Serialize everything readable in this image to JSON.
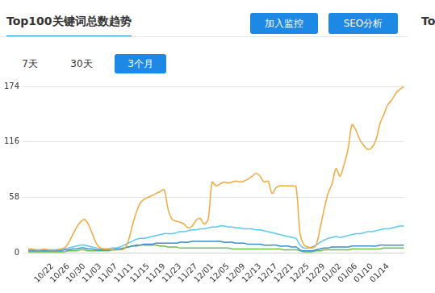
{
  "header": {
    "title": "Top100关键词总数趋势",
    "buttons": [
      "加入监控",
      "SEO分析"
    ],
    "next_panel_title": "To"
  },
  "tabs": {
    "items": [
      "7天",
      "30天",
      "3个月"
    ],
    "active": "3个月"
  },
  "chart_data": {
    "type": "line",
    "categories": [
      null,
      null,
      null,
      null,
      null,
      null,
      "10/22",
      null,
      null,
      null,
      "10/26",
      null,
      null,
      null,
      "10/30",
      null,
      null,
      null,
      "11/03",
      null,
      null,
      null,
      "11/07",
      null,
      null,
      null,
      "11/11",
      null,
      null,
      null,
      "11/15",
      null,
      null,
      null,
      "11/19",
      null,
      null,
      null,
      "11/23",
      null,
      null,
      null,
      "11/27",
      null,
      null,
      null,
      "12/01",
      null,
      null,
      null,
      "12/05",
      null,
      null,
      null,
      "12/09",
      null,
      null,
      null,
      "12/13",
      null,
      null,
      null,
      "12/17",
      null,
      null,
      null,
      "12/21",
      null,
      null,
      null,
      "12/25",
      null,
      null,
      null,
      "12/29",
      null,
      null,
      null,
      "01/02",
      null,
      null,
      null,
      "01/06",
      null,
      null,
      null,
      "01/10",
      null,
      null,
      null,
      "01/14",
      null,
      null,
      null,
      null
    ],
    "series": [
      {
        "color": "#f5a73b",
        "values": [
          4,
          4,
          3,
          3,
          4,
          3,
          3,
          3,
          4,
          5,
          10,
          18,
          26,
          32,
          35,
          30,
          20,
          10,
          5,
          4,
          4,
          3,
          3,
          3,
          4,
          12,
          28,
          42,
          52,
          56,
          58,
          60,
          62,
          64,
          66,
          45,
          35,
          33,
          32,
          30,
          26,
          28,
          34,
          36,
          30,
          35,
          74,
          70,
          72,
          74,
          73,
          74,
          75,
          74,
          75,
          77,
          80,
          83,
          80,
          74,
          75,
          62,
          68,
          70,
          70,
          70,
          70,
          69,
          20,
          8,
          6,
          5,
          8,
          25,
          45,
          62,
          72,
          88,
          80,
          92,
          108,
          134,
          128,
          118,
          112,
          108,
          110,
          118,
          135,
          145,
          155,
          160,
          167,
          171,
          174
        ]
      },
      {
        "color": "#5bc8f0",
        "values": [
          3,
          3,
          3,
          3,
          3,
          3,
          3,
          3,
          3,
          4,
          5,
          6,
          7,
          8,
          8,
          7,
          6,
          5,
          4,
          4,
          4,
          5,
          5,
          6,
          8,
          10,
          12,
          14,
          15,
          15,
          16,
          17,
          18,
          19,
          20,
          20,
          20,
          21,
          22,
          22,
          23,
          24,
          24,
          25,
          25,
          26,
          27,
          27,
          28,
          28,
          27,
          27,
          26,
          26,
          25,
          25,
          25,
          24,
          24,
          23,
          22,
          21,
          20,
          19,
          18,
          17,
          16,
          15,
          8,
          5,
          5,
          6,
          8,
          11,
          13,
          15,
          16,
          17,
          16,
          17,
          18,
          19,
          20,
          20,
          21,
          22,
          22,
          23,
          24,
          25,
          25,
          26,
          27,
          28,
          28
        ]
      },
      {
        "color": "#3a8fd0",
        "values": [
          2,
          2,
          2,
          2,
          2,
          2,
          2,
          2,
          2,
          3,
          3,
          4,
          4,
          5,
          5,
          4,
          4,
          3,
          3,
          3,
          3,
          3,
          4,
          4,
          5,
          6,
          7,
          8,
          8,
          9,
          9,
          9,
          10,
          10,
          10,
          10,
          10,
          10,
          11,
          11,
          11,
          12,
          12,
          12,
          12,
          12,
          12,
          12,
          12,
          11,
          11,
          11,
          10,
          10,
          10,
          9,
          9,
          9,
          9,
          8,
          8,
          8,
          8,
          7,
          7,
          7,
          6,
          6,
          3,
          2,
          2,
          2,
          3,
          4,
          5,
          5,
          6,
          6,
          6,
          6,
          6,
          7,
          7,
          7,
          7,
          7,
          7,
          7,
          8,
          8,
          8,
          8,
          8,
          8,
          8
        ]
      },
      {
        "color": "#6cc04a",
        "values": [
          1,
          1,
          1,
          1,
          1,
          1,
          1,
          1,
          1,
          1,
          2,
          2,
          2,
          3,
          3,
          2,
          2,
          2,
          2,
          2,
          2,
          3,
          3,
          4,
          5,
          6,
          7,
          7,
          8,
          8,
          8,
          8,
          8,
          7,
          7,
          6,
          6,
          6,
          5,
          5,
          5,
          5,
          5,
          5,
          5,
          5,
          5,
          5,
          5,
          5,
          5,
          4,
          4,
          4,
          4,
          4,
          4,
          4,
          4,
          4,
          4,
          4,
          4,
          4,
          3,
          3,
          3,
          3,
          2,
          1,
          1,
          1,
          2,
          2,
          3,
          3,
          3,
          3,
          3,
          3,
          3,
          4,
          4,
          4,
          4,
          4,
          4,
          4,
          4,
          5,
          5,
          5,
          5,
          5,
          5
        ]
      }
    ],
    "ylim": [
      0,
      174
    ],
    "yticks": [
      0,
      58,
      116,
      174
    ],
    "grid": true,
    "marker": "none"
  }
}
